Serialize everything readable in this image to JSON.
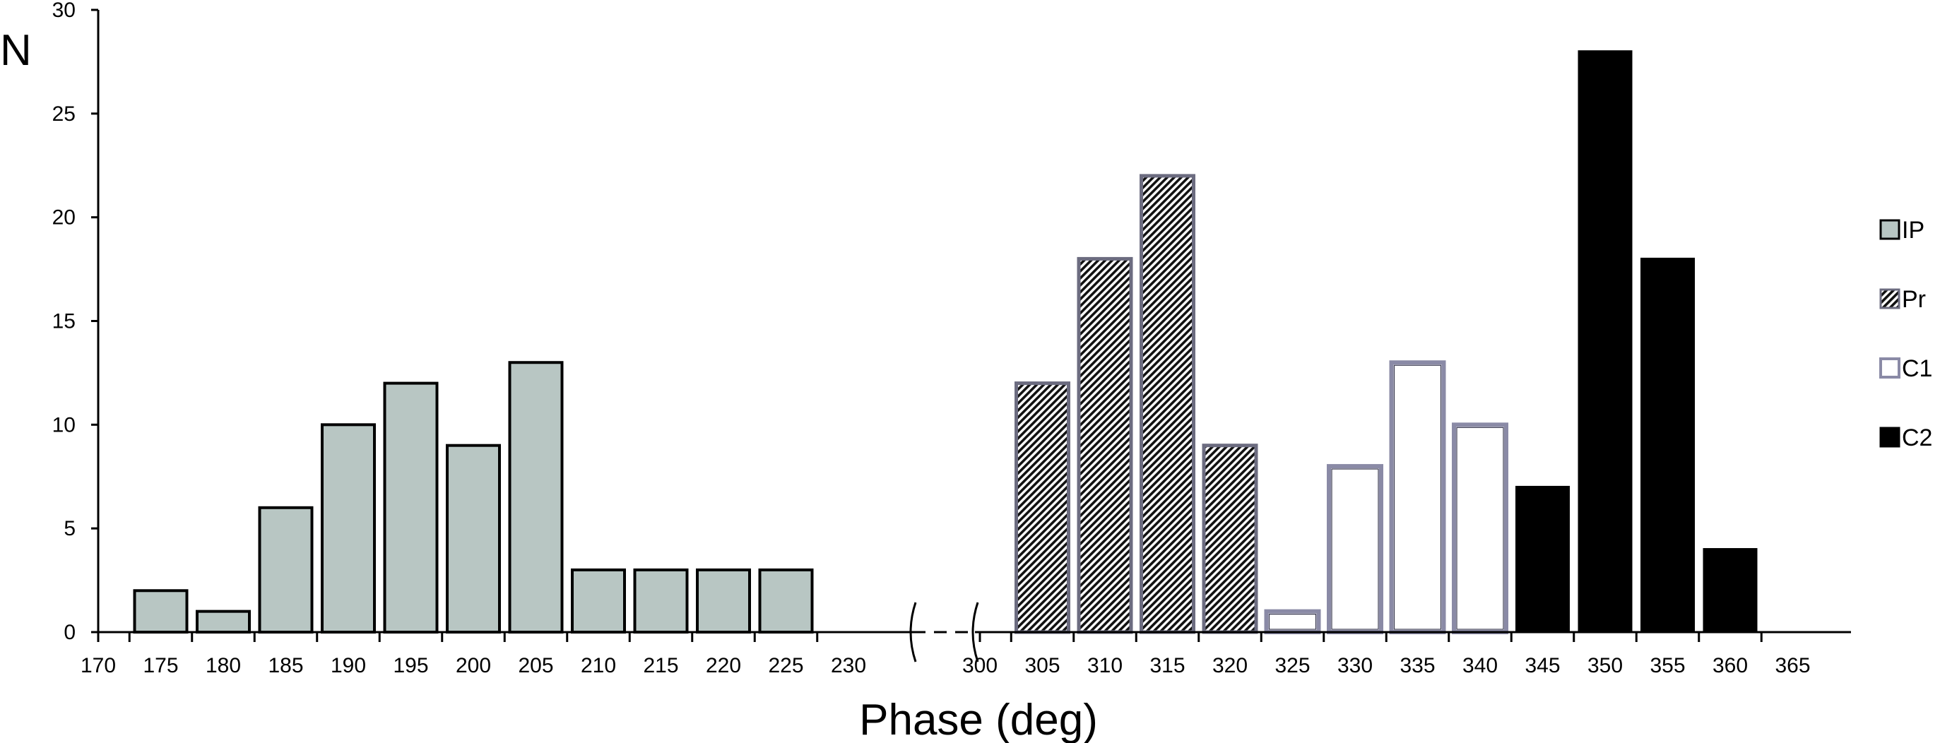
{
  "chart_data": {
    "type": "bar",
    "xlabel": "Phase (deg)",
    "ylabel": "N",
    "ylim": [
      0,
      30
    ],
    "yticks": [
      0,
      5,
      10,
      15,
      20,
      25,
      30
    ],
    "xticks_left": [
      170,
      175,
      180,
      185,
      190,
      195,
      200,
      205,
      210,
      215,
      220,
      225,
      230
    ],
    "xticks_right": [
      300,
      305,
      310,
      315,
      320,
      325,
      330,
      335,
      340,
      345,
      350,
      355,
      360,
      365
    ],
    "axis_break": [
      230,
      300
    ],
    "grid": false,
    "legend_placement": "right",
    "series": [
      {
        "name": "IP",
        "style": "solid-gray",
        "color": "#b8c6c3",
        "x": [
          175,
          180,
          185,
          190,
          195,
          200,
          205,
          210,
          215,
          220,
          225
        ],
        "values": [
          2,
          1,
          6,
          10,
          12,
          9,
          13,
          3,
          3,
          3,
          3
        ]
      },
      {
        "name": "Pr",
        "style": "hatched",
        "color": "#000000",
        "x": [
          305,
          310,
          315,
          320
        ],
        "values": [
          12,
          18,
          22,
          9
        ]
      },
      {
        "name": "C1",
        "style": "open",
        "color": "#ffffff",
        "x": [
          325,
          330,
          335,
          340
        ],
        "values": [
          1,
          8,
          13,
          10
        ]
      },
      {
        "name": "C2",
        "style": "solid-black",
        "color": "#000000",
        "x": [
          345,
          350,
          355,
          360
        ],
        "values": [
          7,
          28,
          18,
          4
        ]
      }
    ]
  }
}
